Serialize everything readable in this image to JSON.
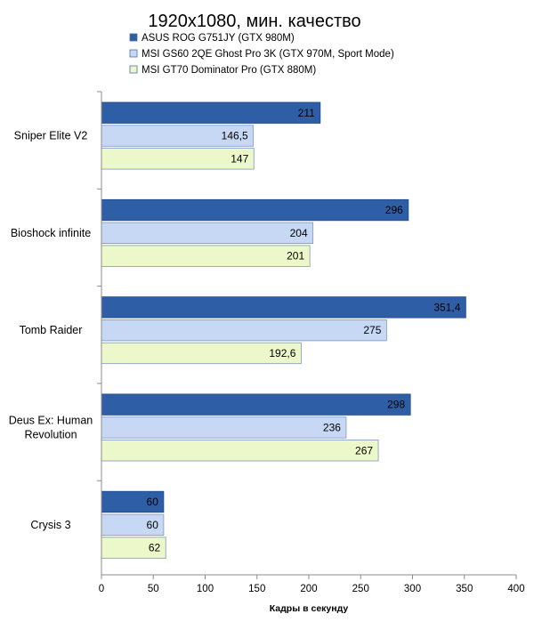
{
  "chart_data": {
    "type": "bar",
    "orientation": "horizontal",
    "title": "1920x1080, мин. качество",
    "xlabel": "Кадры  в секунду",
    "ylabel": "",
    "xlim": [
      0,
      400
    ],
    "xticks": [
      0,
      50,
      100,
      150,
      200,
      250,
      300,
      350,
      400
    ],
    "grid": false,
    "legend_position": "top",
    "categories": [
      "Sniper Elite V2",
      "Bioshock infinite",
      "Tomb Raider",
      "Deus Ex: Human Revolution",
      "Crysis 3"
    ],
    "category_lines": [
      [
        "Sniper Elite V2"
      ],
      [
        "Bioshock infinite"
      ],
      [
        "Tomb Raider"
      ],
      [
        "Deus Ex: Human",
        "Revolution"
      ],
      [
        "Crysis 3"
      ]
    ],
    "series": [
      {
        "name": "ASUS ROG G751JY (GTX 980M)",
        "values": [
          211,
          296,
          351.4,
          298,
          60
        ],
        "labels": [
          "211",
          "296",
          "351,4",
          "298",
          "60"
        ],
        "color": "#2e5fa6"
      },
      {
        "name": "MSI GS60 2QE Ghost Pro 3K (GTX 970M, Sport Mode)",
        "values": [
          146.5,
          204,
          275,
          236,
          60
        ],
        "labels": [
          "146,5",
          "204",
          "275",
          "236",
          "60"
        ],
        "color": "#c7d8f5"
      },
      {
        "name": "MSI GT70 Dominator Pro (GTX 880M)",
        "values": [
          147,
          201,
          192.6,
          267,
          62
        ],
        "labels": [
          "147",
          "201",
          "192,6",
          "267",
          "62"
        ],
        "color": "#ecf8c9"
      }
    ]
  }
}
